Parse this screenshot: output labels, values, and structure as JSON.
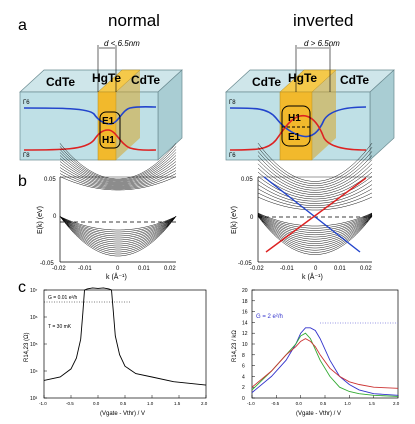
{
  "panels": {
    "a": {
      "letter": "a",
      "normal": {
        "title": "normal",
        "dimension": "d < 6.5nm",
        "left_label": "CdTe",
        "mid_label": "HgTe",
        "right_label": "CdTe",
        "state_upper": "E1",
        "state_lower": "H1",
        "level_upper": "Γ6",
        "level_lower": "Γ8"
      },
      "inverted": {
        "title": "inverted",
        "dimension": "d > 6.5nm",
        "left_label": "CdTe",
        "mid_label": "HgTe",
        "right_label": "CdTe",
        "state_upper": "H1",
        "state_lower": "E1",
        "level_upper": "Γ8",
        "level_lower": "Γ6"
      }
    },
    "b": {
      "letter": "b",
      "ylabel": "E(k) (eV)",
      "xlabel": "k (Å⁻¹)",
      "yticks": [
        "0.05",
        "0",
        "-0.05"
      ],
      "xticks": [
        "-0.02",
        "-0.01",
        "0",
        "0.01",
        "0.02"
      ]
    },
    "c": {
      "letter": "c",
      "left": {
        "ylabel": "R14,23 (Ω)",
        "xlabel": "(Vgate - Vthr) / V",
        "annot_g": "G = 0.01 e²/h",
        "annot_t": "T = 30 mK",
        "yticks": [
          "10⁷",
          "10⁶",
          "10⁵",
          "10⁴",
          "10³"
        ],
        "xticks": [
          "-1.0",
          "-0.5",
          "0.0",
          "0.5",
          "1.0",
          "1.5",
          "2.0"
        ]
      },
      "right": {
        "ylabel": "R14,23 / kΩ",
        "xlabel": "(Vgate - Vthr) / V",
        "annot_g": "G = 2 e²/h",
        "yticks": [
          "20",
          "18",
          "16",
          "14",
          "12",
          "10",
          "8",
          "6",
          "4",
          "2",
          "0"
        ],
        "xticks": [
          "-1.0",
          "-0.5",
          "0.0",
          "0.5",
          "1.0",
          "1.5",
          "2.0"
        ]
      }
    }
  },
  "chart_data": [
    {
      "type": "line",
      "title": "",
      "xlabel": "(Vgate - Vthr) / V",
      "ylabel": "R14,23 (Ω)",
      "xlim": [
        -1.0,
        2.0
      ],
      "ylim": [
        1000,
        10000000
      ],
      "yscale": "log",
      "series": [
        {
          "x": [
            -1.0,
            -0.7,
            -0.5,
            -0.4,
            -0.32,
            -0.28,
            -0.25,
            -0.2,
            -0.1,
            0.0,
            0.1,
            0.2,
            0.25,
            0.28,
            0.32,
            0.4,
            0.5,
            0.7,
            1.0,
            1.4,
            2.0
          ],
          "y": [
            4500,
            6000,
            12000,
            30000,
            150000,
            1500000,
            10000000,
            11000000,
            12000000,
            11500000,
            12000000,
            11000000,
            10000000,
            2000000,
            200000,
            40000,
            15000,
            8000,
            6000,
            4000,
            3000
          ]
        }
      ]
    },
    {
      "type": "line",
      "title": "",
      "xlabel": "(Vgate - Vthr) / V",
      "ylabel": "R14,23 / kΩ",
      "xlim": [
        -1.0,
        2.0
      ],
      "ylim": [
        0,
        20
      ],
      "series": [
        {
          "color": "#3333cc",
          "x": [
            -1.0,
            -0.6,
            -0.3,
            -0.1,
            0.0,
            0.1,
            0.2,
            0.3,
            0.4,
            0.6,
            0.8,
            1.0,
            1.2,
            1.5,
            2.0
          ],
          "y": [
            1,
            4,
            7,
            10,
            12,
            13,
            13,
            12.5,
            11,
            7,
            4,
            2.5,
            1.5,
            0.8,
            0.5
          ]
        },
        {
          "color": "#33aa33",
          "x": [
            -1.0,
            -0.6,
            -0.3,
            -0.1,
            0.0,
            0.1,
            0.2,
            0.3,
            0.4,
            0.6,
            0.8,
            1.0,
            1.2,
            1.5,
            2.0
          ],
          "y": [
            1.5,
            5,
            8,
            10,
            11.5,
            12,
            11,
            9,
            7,
            4,
            2,
            1.2,
            0.8,
            0.5,
            0.3
          ]
        },
        {
          "color": "#cc3333",
          "x": [
            -1.0,
            -0.6,
            -0.3,
            -0.1,
            0.0,
            0.1,
            0.2,
            0.3,
            0.4,
            0.6,
            0.8,
            1.0,
            1.2,
            1.5,
            2.0
          ],
          "y": [
            2,
            5,
            8,
            9.5,
            10.5,
            11,
            10.5,
            9.5,
            8,
            5.5,
            4,
            3,
            2.5,
            2,
            1.8
          ]
        }
      ]
    }
  ]
}
